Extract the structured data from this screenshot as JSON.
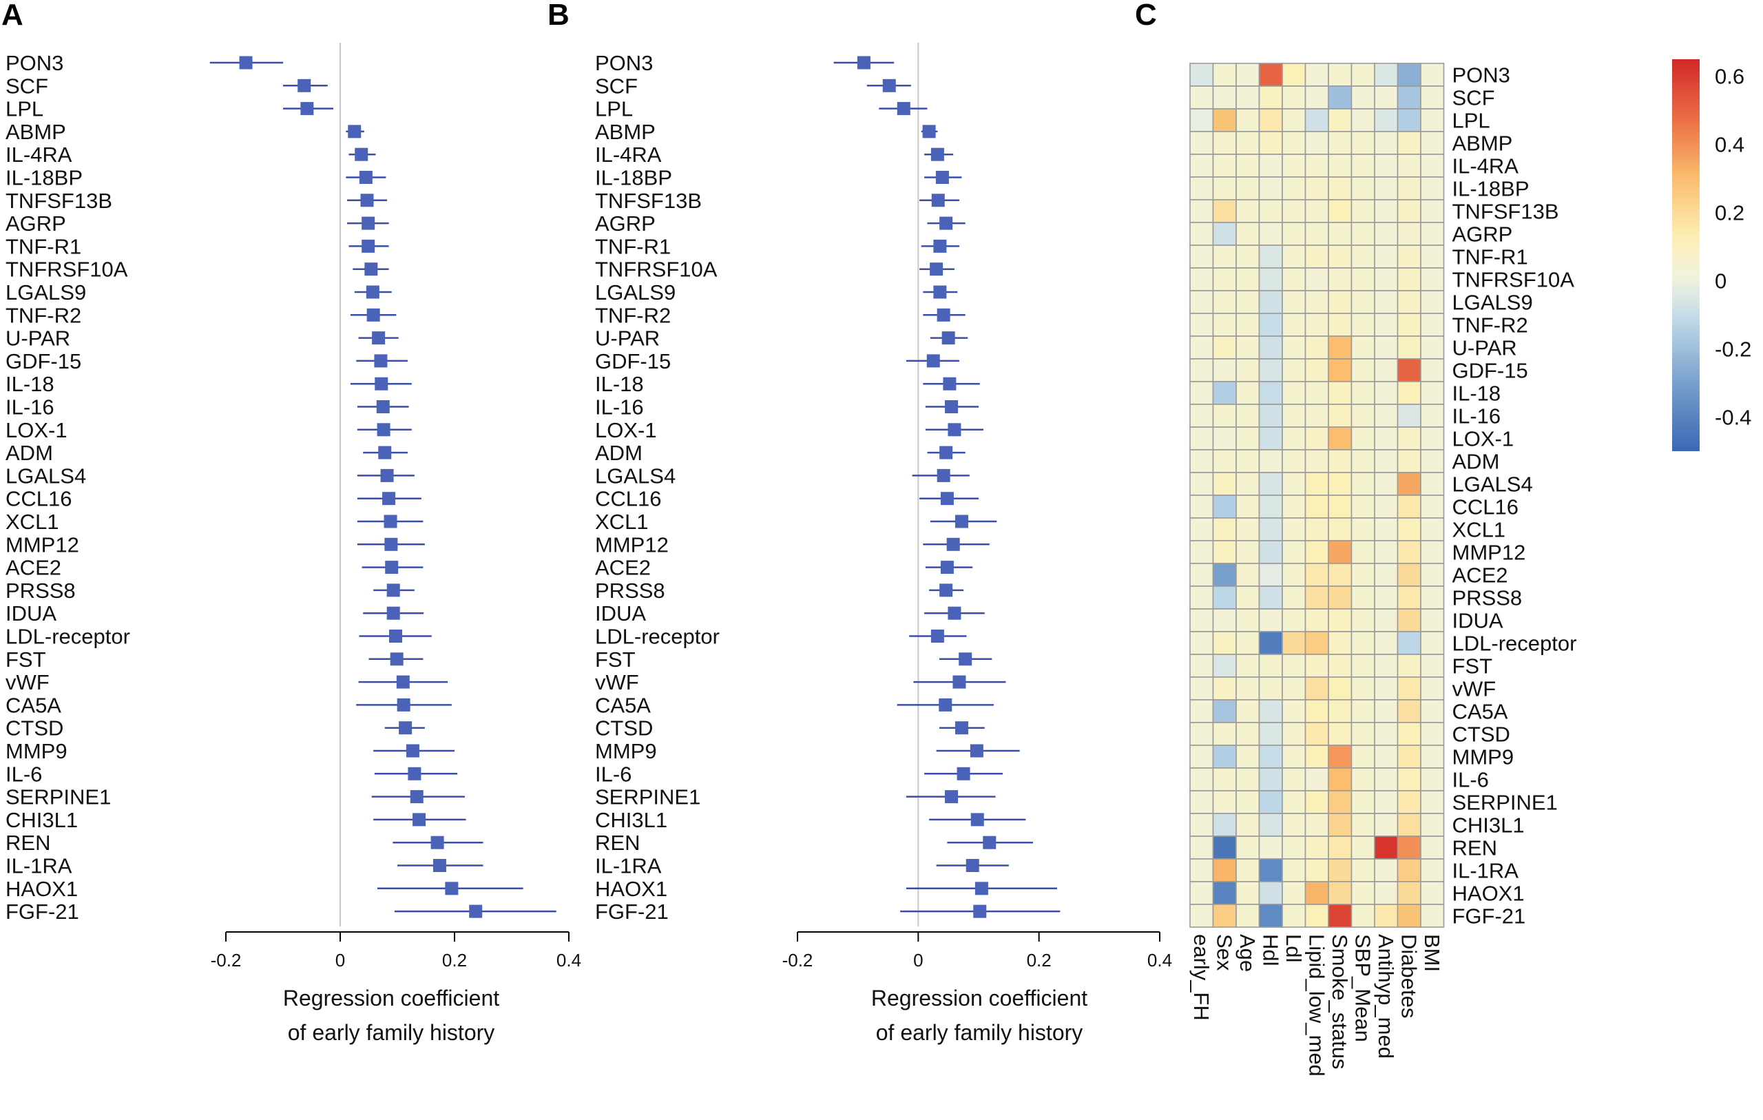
{
  "chart_data": [
    {
      "panel": "A",
      "type": "scatter",
      "subtype": "forest-plot",
      "xlabel_line1": "Regression coefficient",
      "xlabel_line2": "of early family history",
      "xlim": [
        -0.2,
        0.4
      ],
      "xticks": [
        -0.2,
        0,
        0.2,
        0.4
      ],
      "xtick_labels": [
        "-0.2",
        "0",
        "0.2",
        "0.4"
      ],
      "colors": {
        "marker": "#4a62b8",
        "ci": "#3a4ea8",
        "zero_line": "#c8c8c8"
      },
      "proteins": [
        "PON3",
        "SCF",
        "LPL",
        "ABMP",
        "IL-4RA",
        "IL-18BP",
        "TNFSF13B",
        "AGRP",
        "TNF-R1",
        "TNFRSF10A",
        "LGALS9",
        "TNF-R2",
        "U-PAR",
        "GDF-15",
        "IL-18",
        "IL-16",
        "LOX-1",
        "ADM",
        "LGALS4",
        "CCL16",
        "XCL1",
        "MMP12",
        "ACE2",
        "PRSS8",
        "IDUA",
        "LDL-receptor",
        "FST",
        "vWF",
        "CA5A",
        "CTSD",
        "MMP9",
        "IL-6",
        "SERPINE1",
        "CHI3L1",
        "REN",
        "IL-1RA",
        "HAOX1",
        "FGF-21"
      ],
      "estimates": [
        -0.165,
        -0.063,
        -0.058,
        0.025,
        0.037,
        0.045,
        0.047,
        0.049,
        0.049,
        0.054,
        0.057,
        0.058,
        0.067,
        0.071,
        0.072,
        0.075,
        0.076,
        0.078,
        0.082,
        0.085,
        0.088,
        0.089,
        0.09,
        0.093,
        0.093,
        0.097,
        0.099,
        0.11,
        0.111,
        0.114,
        0.127,
        0.13,
        0.134,
        0.138,
        0.17,
        0.174,
        0.195,
        0.237
      ],
      "ci_low": [
        -0.228,
        -0.1,
        -0.1,
        0.01,
        0.015,
        0.01,
        0.012,
        0.012,
        0.015,
        0.022,
        0.025,
        0.018,
        0.032,
        0.028,
        0.018,
        0.03,
        0.03,
        0.04,
        0.03,
        0.03,
        0.03,
        0.03,
        0.038,
        0.058,
        0.04,
        0.033,
        0.05,
        0.032,
        0.028,
        0.078,
        0.058,
        0.06,
        0.055,
        0.058,
        0.092,
        0.1,
        0.065,
        0.095
      ],
      "ci_high": [
        -0.1,
        -0.022,
        -0.012,
        0.042,
        0.062,
        0.08,
        0.082,
        0.085,
        0.085,
        0.085,
        0.09,
        0.098,
        0.102,
        0.118,
        0.125,
        0.12,
        0.125,
        0.118,
        0.13,
        0.142,
        0.145,
        0.148,
        0.145,
        0.13,
        0.146,
        0.16,
        0.145,
        0.188,
        0.195,
        0.148,
        0.2,
        0.205,
        0.218,
        0.22,
        0.25,
        0.25,
        0.32,
        0.378
      ]
    },
    {
      "panel": "B",
      "type": "scatter",
      "subtype": "forest-plot",
      "xlabel_line1": "Regression coefficient",
      "xlabel_line2": "of early family history",
      "xlim": [
        -0.2,
        0.4
      ],
      "xticks": [
        -0.2,
        0,
        0.2,
        0.4
      ],
      "xtick_labels": [
        "-0.2",
        "0",
        "0.2",
        "0.4"
      ],
      "colors": {
        "marker": "#4a62b8",
        "ci": "#3a4ea8",
        "zero_line": "#c8c8c8"
      },
      "proteins": [
        "PON3",
        "SCF",
        "LPL",
        "ABMP",
        "IL-4RA",
        "IL-18BP",
        "TNFSF13B",
        "AGRP",
        "TNF-R1",
        "TNFRSF10A",
        "LGALS9",
        "TNF-R2",
        "U-PAR",
        "GDF-15",
        "IL-18",
        "IL-16",
        "LOX-1",
        "ADM",
        "LGALS4",
        "CCL16",
        "XCL1",
        "MMP12",
        "ACE2",
        "PRSS8",
        "IDUA",
        "LDL-receptor",
        "FST",
        "vWF",
        "CA5A",
        "CTSD",
        "MMP9",
        "IL-6",
        "SERPINE1",
        "CHI3L1",
        "REN",
        "IL-1RA",
        "HAOX1",
        "FGF-21"
      ],
      "estimates": [
        -0.09,
        -0.048,
        -0.024,
        0.018,
        0.032,
        0.04,
        0.033,
        0.046,
        0.036,
        0.03,
        0.036,
        0.042,
        0.05,
        0.025,
        0.052,
        0.055,
        0.06,
        0.046,
        0.042,
        0.048,
        0.072,
        0.058,
        0.048,
        0.046,
        0.06,
        0.032,
        0.078,
        0.068,
        0.045,
        0.072,
        0.097,
        0.075,
        0.055,
        0.098,
        0.118,
        0.09,
        0.105,
        0.102
      ],
      "ci_low": [
        -0.14,
        -0.085,
        -0.065,
        0.005,
        0.01,
        0.01,
        0.002,
        0.015,
        0.005,
        0.002,
        0.008,
        0.008,
        0.02,
        -0.02,
        0.008,
        0.012,
        0.012,
        0.015,
        -0.01,
        0.002,
        0.02,
        0.008,
        0.012,
        0.018,
        0.01,
        -0.015,
        0.035,
        -0.008,
        -0.035,
        0.035,
        0.03,
        0.01,
        -0.02,
        0.018,
        0.048,
        0.03,
        -0.02,
        -0.03
      ],
      "ci_high": [
        -0.04,
        -0.012,
        0.015,
        0.032,
        0.058,
        0.072,
        0.068,
        0.078,
        0.068,
        0.06,
        0.065,
        0.078,
        0.082,
        0.068,
        0.102,
        0.1,
        0.108,
        0.078,
        0.085,
        0.1,
        0.13,
        0.118,
        0.09,
        0.075,
        0.11,
        0.08,
        0.122,
        0.145,
        0.125,
        0.11,
        0.168,
        0.14,
        0.128,
        0.178,
        0.19,
        0.15,
        0.23,
        0.235
      ]
    },
    {
      "panel": "C",
      "type": "heatmap",
      "rows": [
        "PON3",
        "SCF",
        "LPL",
        "ABMP",
        "IL-4RA",
        "IL-18BP",
        "TNFSF13B",
        "AGRP",
        "TNF-R1",
        "TNFRSF10A",
        "LGALS9",
        "TNF-R2",
        "U-PAR",
        "GDF-15",
        "IL-18",
        "IL-16",
        "LOX-1",
        "ADM",
        "LGALS4",
        "CCL16",
        "XCL1",
        "MMP12",
        "ACE2",
        "PRSS8",
        "IDUA",
        "LDL-receptor",
        "FST",
        "vWF",
        "CA5A",
        "CTSD",
        "MMP9",
        "IL-6",
        "SERPINE1",
        "CHI3L1",
        "REN",
        "IL-1RA",
        "HAOX1",
        "FGF-21"
      ],
      "columns": [
        "early_FH",
        "Sex",
        "Age",
        "Hdl",
        "Ldl",
        "Lipid_low_med",
        "Smoke_status",
        "SBP_Mean",
        "Antihyp_med",
        "Diabetes",
        "BMI"
      ],
      "color_range": [
        -0.5,
        0.65
      ],
      "legend_ticks": [
        0.6,
        0.4,
        0.2,
        0,
        -0.2,
        -0.4
      ],
      "legend_tick_labels": [
        "0.6",
        "0.4",
        "0.2",
        "0",
        "-0.2",
        "-0.4"
      ],
      "values": [
        [
          -0.05,
          0.05,
          0.03,
          0.5,
          0.12,
          0.03,
          0.05,
          0.05,
          -0.05,
          -0.25,
          0.03
        ],
        [
          0.03,
          0.03,
          0.03,
          0.1,
          0.05,
          0.03,
          -0.2,
          0.03,
          0.03,
          -0.18,
          0.03
        ],
        [
          -0.02,
          0.28,
          0.05,
          0.15,
          0.05,
          -0.08,
          0.1,
          0.03,
          -0.05,
          -0.15,
          0.03
        ],
        [
          0.03,
          0.05,
          0.05,
          0.08,
          0.05,
          0.03,
          0.05,
          0.05,
          0.03,
          0.08,
          0.03
        ],
        [
          0.03,
          0.05,
          0.05,
          0.03,
          0.05,
          0.05,
          0.05,
          0.05,
          0.03,
          0.05,
          0.03
        ],
        [
          0.03,
          0.05,
          0.05,
          0.03,
          0.05,
          0.07,
          0.08,
          0.05,
          0.03,
          0.07,
          0.03
        ],
        [
          0.03,
          0.18,
          0.05,
          0.05,
          0.05,
          0.05,
          0.12,
          0.05,
          0.03,
          0.08,
          0.03
        ],
        [
          0.03,
          -0.08,
          0.05,
          0.03,
          0.05,
          0.05,
          0.05,
          0.05,
          0.03,
          0.05,
          0.03
        ],
        [
          0.03,
          0.05,
          0.05,
          -0.05,
          0.05,
          0.08,
          0.08,
          0.05,
          0.03,
          0.08,
          0.03
        ],
        [
          0.03,
          0.05,
          0.05,
          -0.05,
          0.05,
          0.03,
          0.06,
          0.05,
          0.03,
          0.08,
          0.03
        ],
        [
          0.03,
          0.05,
          0.05,
          -0.08,
          0.05,
          0.05,
          0.08,
          0.05,
          0.03,
          0.08,
          0.03
        ],
        [
          0.03,
          0.05,
          0.05,
          -0.1,
          0.05,
          0.06,
          0.08,
          0.05,
          0.03,
          0.1,
          0.03
        ],
        [
          0.03,
          0.1,
          0.05,
          -0.08,
          0.05,
          0.08,
          0.3,
          0.05,
          0.03,
          0.1,
          0.03
        ],
        [
          0.03,
          0.03,
          0.05,
          -0.06,
          0.05,
          0.08,
          0.3,
          0.05,
          0.03,
          0.5,
          0.03
        ],
        [
          0.03,
          -0.15,
          0.05,
          -0.1,
          0.05,
          0.05,
          0.1,
          0.05,
          0.03,
          0.12,
          0.03
        ],
        [
          0.03,
          0.05,
          0.05,
          -0.08,
          0.05,
          0.05,
          0.1,
          0.05,
          0.03,
          -0.05,
          0.03
        ],
        [
          0.03,
          0.03,
          0.05,
          -0.08,
          0.05,
          0.08,
          0.3,
          0.05,
          0.03,
          0.08,
          0.03
        ],
        [
          0.03,
          0.05,
          0.05,
          0.03,
          0.05,
          0.06,
          0.08,
          0.05,
          0.03,
          0.08,
          0.03
        ],
        [
          0.03,
          0.1,
          0.05,
          -0.06,
          0.05,
          0.12,
          0.12,
          0.05,
          0.03,
          0.35,
          0.03
        ],
        [
          0.03,
          -0.15,
          0.05,
          -0.05,
          0.05,
          0.12,
          0.12,
          0.05,
          0.03,
          0.15,
          0.03
        ],
        [
          0.03,
          0.1,
          0.05,
          -0.06,
          0.05,
          0.08,
          0.1,
          0.05,
          0.03,
          0.12,
          0.03
        ],
        [
          0.03,
          0.1,
          0.05,
          -0.08,
          0.05,
          0.12,
          0.35,
          0.05,
          0.03,
          0.15,
          0.03
        ],
        [
          0.03,
          -0.3,
          0.05,
          -0.03,
          0.05,
          0.15,
          0.15,
          0.05,
          0.03,
          0.2,
          0.03
        ],
        [
          0.03,
          -0.12,
          0.05,
          -0.08,
          0.05,
          0.18,
          0.2,
          0.05,
          0.03,
          0.15,
          0.03
        ],
        [
          0.03,
          0.03,
          0.05,
          0.03,
          0.05,
          0.08,
          0.1,
          0.05,
          0.03,
          0.2,
          0.03
        ],
        [
          0.03,
          0.1,
          0.05,
          -0.42,
          0.2,
          0.25,
          0.08,
          0.05,
          0.03,
          -0.12,
          0.03
        ],
        [
          0.03,
          -0.05,
          0.05,
          0.05,
          0.05,
          0.08,
          0.08,
          0.05,
          0.03,
          0.08,
          0.03
        ],
        [
          0.03,
          0.08,
          0.05,
          0.05,
          0.05,
          0.18,
          0.12,
          0.05,
          0.03,
          0.15,
          0.03
        ],
        [
          0.03,
          -0.18,
          0.05,
          -0.06,
          0.05,
          0.12,
          0.1,
          0.05,
          0.03,
          0.18,
          0.03
        ],
        [
          0.03,
          0.05,
          0.05,
          -0.05,
          0.05,
          0.15,
          0.1,
          0.05,
          0.03,
          0.12,
          0.03
        ],
        [
          0.03,
          -0.15,
          0.05,
          -0.1,
          0.05,
          0.12,
          0.38,
          0.05,
          0.03,
          0.15,
          0.03
        ],
        [
          0.03,
          0.05,
          0.05,
          -0.08,
          0.05,
          0.03,
          0.3,
          0.05,
          0.03,
          0.12,
          0.03
        ],
        [
          0.03,
          0.05,
          0.05,
          -0.12,
          0.05,
          0.12,
          0.25,
          0.05,
          0.03,
          0.15,
          0.03
        ],
        [
          0.03,
          -0.08,
          0.05,
          -0.06,
          0.05,
          0.05,
          0.22,
          0.05,
          0.03,
          0.18,
          0.03
        ],
        [
          0.03,
          -0.45,
          0.05,
          0.03,
          0.05,
          0.08,
          0.15,
          0.05,
          0.62,
          0.4,
          0.03
        ],
        [
          0.03,
          0.32,
          0.05,
          -0.38,
          0.05,
          0.1,
          0.2,
          0.05,
          0.03,
          0.25,
          0.03
        ],
        [
          0.03,
          -0.4,
          0.05,
          -0.08,
          0.05,
          0.32,
          0.2,
          0.05,
          0.03,
          0.2,
          0.03
        ],
        [
          0.03,
          0.25,
          0.05,
          -0.38,
          0.05,
          0.12,
          0.58,
          0.05,
          0.15,
          0.28,
          0.03
        ]
      ]
    }
  ]
}
